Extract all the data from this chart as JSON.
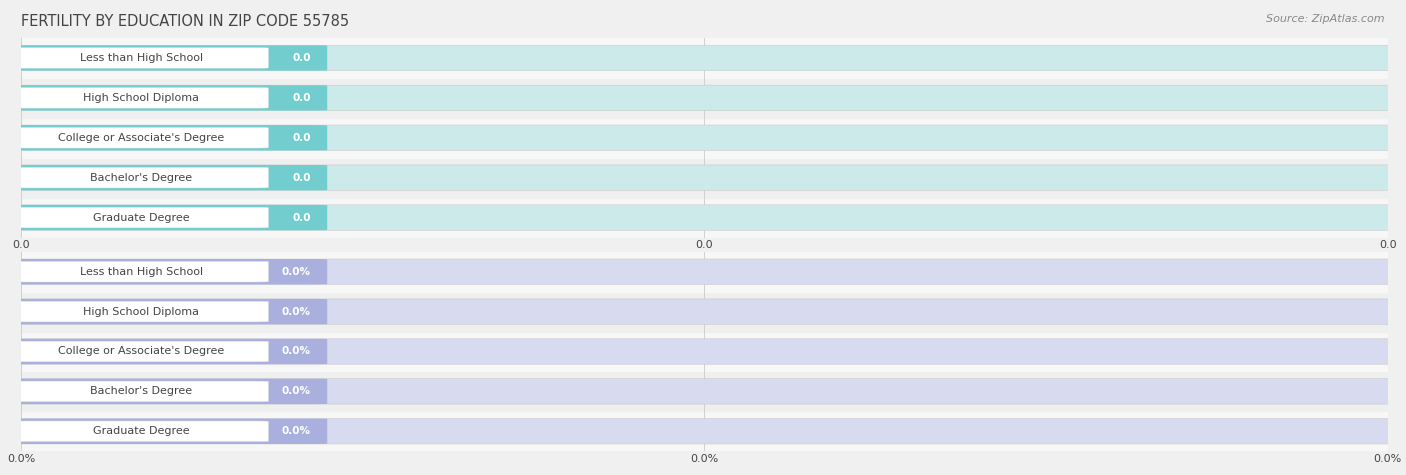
{
  "title": "FERTILITY BY EDUCATION IN ZIP CODE 55785",
  "source": "Source: ZipAtlas.com",
  "categories": [
    "Less than High School",
    "High School Diploma",
    "College or Associate's Degree",
    "Bachelor's Degree",
    "Graduate Degree"
  ],
  "group1_values": [
    0.0,
    0.0,
    0.0,
    0.0,
    0.0
  ],
  "group2_values": [
    0.0,
    0.0,
    0.0,
    0.0,
    0.0
  ],
  "group1_label_suffix": "",
  "group2_label_suffix": "%",
  "group1_bar_color": "#72cece",
  "group1_bg_color": "#cdeaea",
  "group2_bar_color": "#aab0de",
  "group2_bg_color": "#d8daf0",
  "label_bg_color": "#ffffff",
  "row_color_even": "#f2f2f2",
  "row_color_odd": "#e8e8e8",
  "grid_color": "#d0d0d0",
  "text_color_dark": "#444444",
  "text_color_white": "#ffffff",
  "background_color": "#f0f0f0",
  "xtick_labels_group1": [
    "0.0",
    "0.0",
    "0.0"
  ],
  "xtick_labels_group2": [
    "0.0%",
    "0.0%",
    "0.0%"
  ],
  "title_fontsize": 10.5,
  "source_fontsize": 8,
  "label_fontsize": 8,
  "value_fontsize": 7.5,
  "tick_fontsize": 8
}
